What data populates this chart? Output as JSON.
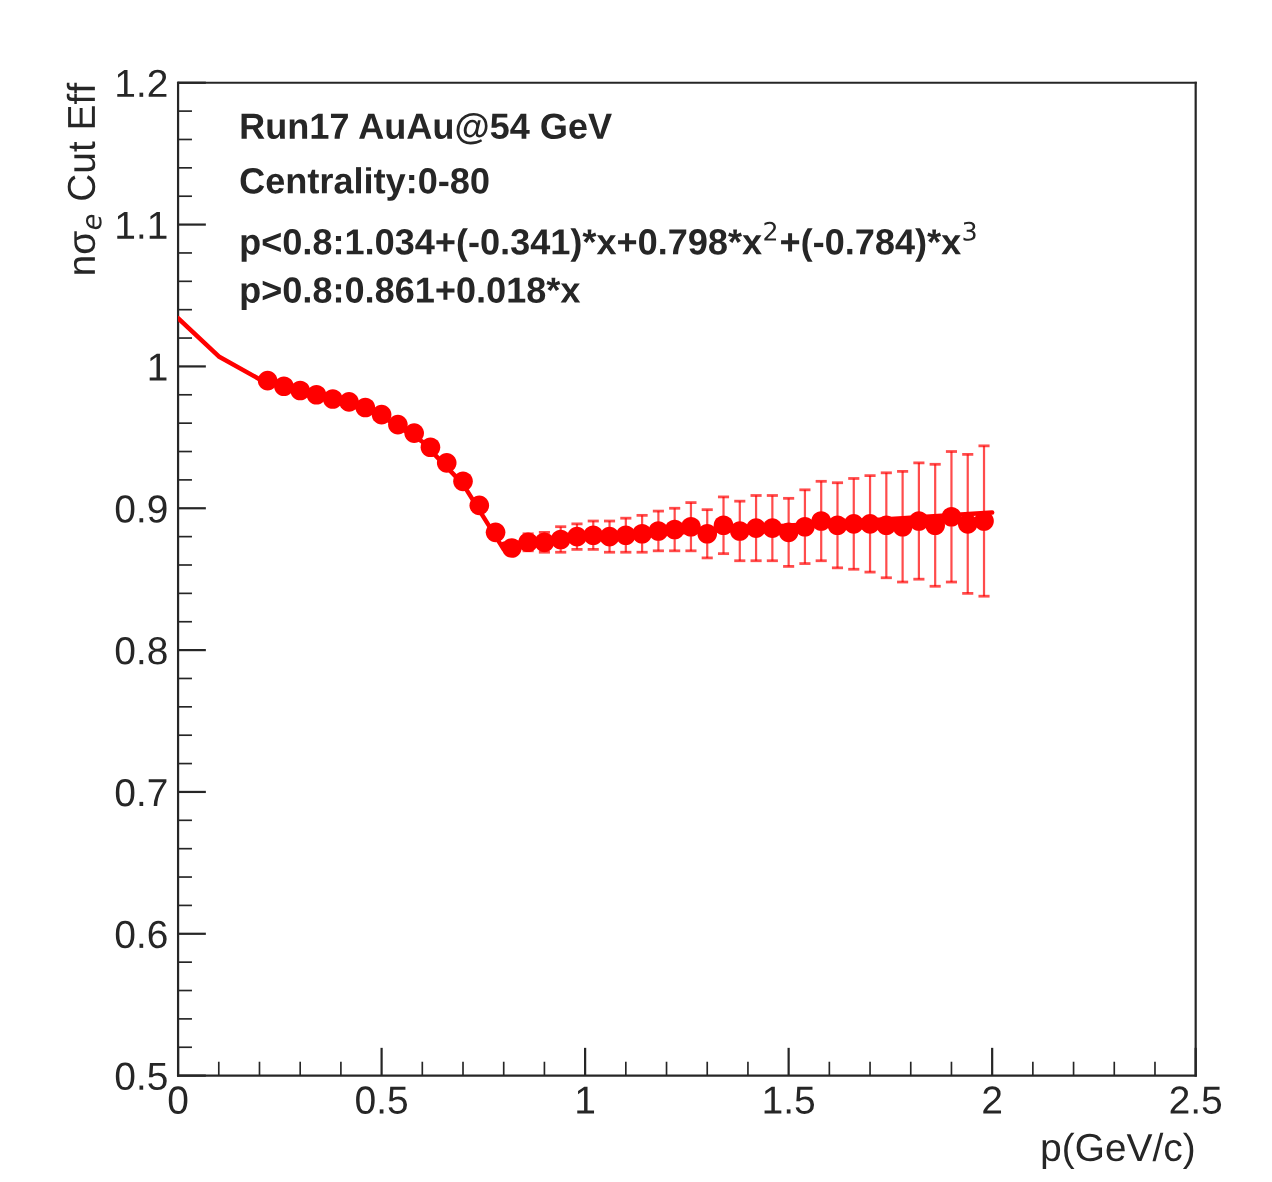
{
  "chart_data": {
    "type": "scatter",
    "xlabel": "p(GeV/c)",
    "ylabel": "nσ$_{e}$ Cut Eff",
    "annotations": [
      "Run17 AuAu@54 GeV",
      "Centrality:0-80",
      "p<0.8:1.034+(-0.341)*x+0.798*x$^{2}$+(-0.784)*x$^{3}$",
      "p>0.8:0.861+0.018*x"
    ],
    "xlim": [
      0,
      2.5
    ],
    "xticks": [
      0,
      0.5,
      1,
      1.5,
      2,
      2.5
    ],
    "ylim": [
      0.5,
      1.2
    ],
    "yticks": [
      0.5,
      0.6,
      0.7,
      0.8,
      0.9,
      1,
      1.1,
      1.2
    ],
    "grid": false,
    "legend": false,
    "series": [
      {
        "marker": "circle",
        "color": "#ff0000",
        "x": [
          0.22,
          0.26,
          0.3,
          0.34,
          0.38,
          0.42,
          0.46,
          0.5,
          0.54,
          0.58,
          0.62,
          0.66,
          0.7,
          0.74,
          0.78,
          0.82,
          0.86,
          0.9,
          0.94,
          0.98,
          1.02,
          1.06,
          1.1,
          1.14,
          1.18,
          1.22,
          1.26,
          1.3,
          1.34,
          1.38,
          1.42,
          1.46,
          1.5,
          1.54,
          1.58,
          1.62,
          1.66,
          1.7,
          1.74,
          1.78,
          1.82,
          1.86,
          1.9,
          1.94,
          1.98
        ],
        "values": [
          0.99,
          0.986,
          0.983,
          0.98,
          0.977,
          0.975,
          0.971,
          0.966,
          0.959,
          0.953,
          0.943,
          0.932,
          0.919,
          0.902,
          0.883,
          0.872,
          0.876,
          0.876,
          0.878,
          0.88,
          0.881,
          0.88,
          0.881,
          0.882,
          0.884,
          0.885,
          0.887,
          0.882,
          0.888,
          0.884,
          0.886,
          0.886,
          0.883,
          0.887,
          0.891,
          0.888,
          0.889,
          0.889,
          0.888,
          0.887,
          0.891,
          0.888,
          0.894,
          0.889,
          0.891
        ],
        "errors": [
          null,
          null,
          null,
          null,
          null,
          null,
          null,
          null,
          null,
          null,
          null,
          null,
          null,
          null,
          null,
          null,
          0.006,
          0.007,
          0.009,
          0.009,
          0.01,
          0.011,
          0.012,
          0.013,
          0.014,
          0.015,
          0.017,
          0.017,
          0.02,
          0.021,
          0.023,
          0.023,
          0.024,
          0.026,
          0.028,
          0.03,
          0.032,
          0.034,
          0.037,
          0.039,
          0.041,
          0.043,
          0.046,
          0.049,
          0.053
        ]
      },
      {
        "type": "line",
        "color": "#ff0000",
        "x": [
          0,
          0.1,
          0.2,
          0.3,
          0.4,
          0.5,
          0.6,
          0.7,
          0.8
        ],
        "values": [
          1.034,
          1.007,
          0.991,
          0.982,
          0.975,
          0.965,
          0.947,
          0.917,
          0.871
        ]
      },
      {
        "type": "line",
        "color": "#ff0000",
        "x": [
          0.8,
          2.0
        ],
        "values": [
          0.875,
          0.897
        ]
      }
    ]
  }
}
